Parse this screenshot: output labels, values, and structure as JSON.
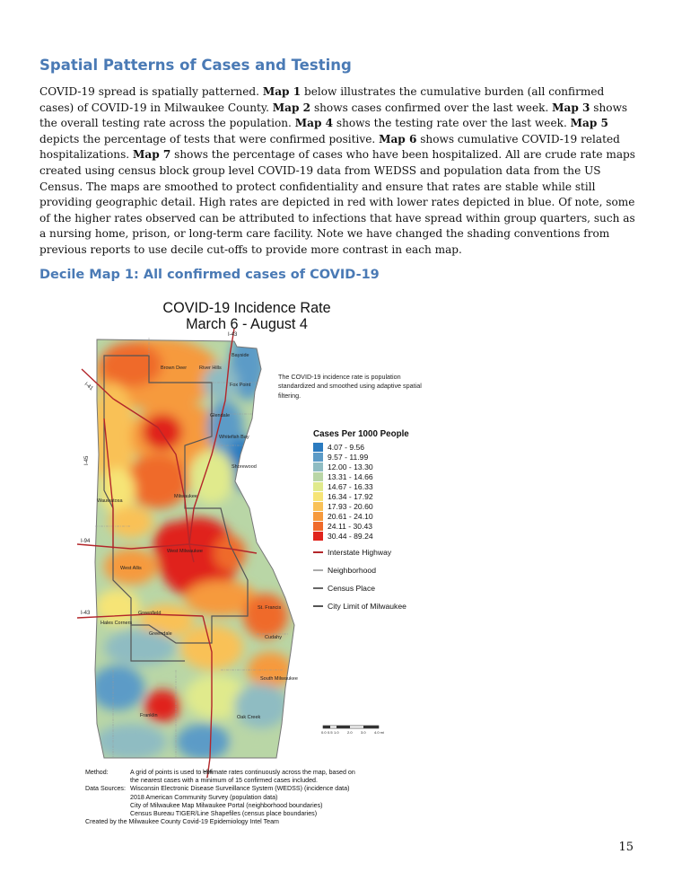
{
  "heading": "Spatial Patterns of Cases and Testing",
  "paragraph": [
    {
      "t": "COVID-19 spread is spatially patterned. "
    },
    {
      "t": "Map 1",
      "b": true
    },
    {
      "t": " below illustrates the cumulative burden (all confirmed cases) of COVID-19 in Milwaukee County. "
    },
    {
      "t": "Map 2",
      "b": true
    },
    {
      "t": " shows cases confirmed over the last week. "
    },
    {
      "t": "Map 3",
      "b": true
    },
    {
      "t": " shows the overall testing rate across the population. "
    },
    {
      "t": "Map 4",
      "b": true
    },
    {
      "t": " shows the testing rate over the last week. "
    },
    {
      "t": "Map 5",
      "b": true
    },
    {
      "t": " depicts the percentage of tests that were confirmed positive. "
    },
    {
      "t": "Map 6",
      "b": true
    },
    {
      "t": " shows cumulative COVID-19 related hospitalizations. "
    },
    {
      "t": "Map 7",
      "b": true
    },
    {
      "t": " shows the percentage of cases who have been hospitalized. All are crude rate maps created using census block group level COVID-19 data from WEDSS and population data from the US Census. The maps are smoothed to protect confidentiality and ensure that rates are stable while still providing geographic detail. High rates are depicted in red with lower rates depicted in blue. Of note, some of the higher rates observed can be attributed to infections that have spread within group quarters, such as a nursing home, prison, or long-term care facility. Note we have changed the shading conventions from previous reports to use decile cut-offs to provide more contrast in each map."
    }
  ],
  "subheading": "Decile Map 1: All confirmed cases of COVID-19",
  "map": {
    "title_line1": "COVID-19 Incidence Rate",
    "title_line2": "March 6 - August 4",
    "note": "The COVID-19 incidence rate is population standardized and smoothed using adaptive spatial filtering.",
    "places": [
      "Bayside",
      "Brown Deer",
      "River Hills",
      "Fox Point",
      "Glendale",
      "Whitefish Bay",
      "Shorewood",
      "Milwaukee",
      "Wauwatosa",
      "West Milwaukee",
      "West Allis",
      "St. Francis",
      "Cudahy",
      "Greenfield",
      "Hales Corners",
      "Greendale",
      "South Milwaukee",
      "Franklin",
      "Oak Creek"
    ],
    "highways": [
      "I-43",
      "I-41",
      "I-94",
      "I-43",
      "I-894",
      "I-94",
      "I-43"
    ],
    "scale_ticks": [
      "0.0",
      "0.5",
      "1.0",
      "2.0",
      "3.0",
      "4.0 mi"
    ]
  },
  "legend": {
    "title": "Cases Per 1000 People",
    "items": [
      {
        "label": "4.07 - 9.56",
        "color": "#2b7bc0"
      },
      {
        "label": "9.57 - 11.99",
        "color": "#5c9bc7"
      },
      {
        "label": "12.00 - 13.30",
        "color": "#8fbcc2"
      },
      {
        "label": "13.31 - 14.66",
        "color": "#b9d6a6"
      },
      {
        "label": "14.67 - 16.33",
        "color": "#e0ea8c"
      },
      {
        "label": "16.34 - 17.92",
        "color": "#f6e476"
      },
      {
        "label": "17.93 - 20.60",
        "color": "#f9c157"
      },
      {
        "label": "20.61 - 24.10",
        "color": "#f69a3d"
      },
      {
        "label": "24.11 - 30.43",
        "color": "#ef6a2a"
      },
      {
        "label": "30.44 - 89.24",
        "color": "#e0241c"
      }
    ],
    "lines": [
      {
        "label": "Interstate Highway",
        "color": "#b3262a",
        "style": "solid"
      },
      {
        "label": "Neighborhood",
        "color": "#aaaaaa",
        "style": "solid"
      },
      {
        "label": "Census Place",
        "color": "#666666",
        "style": "dashdot"
      },
      {
        "label": "City Limit of Milwaukee",
        "color": "#555555",
        "style": "solid"
      }
    ]
  },
  "footer": {
    "method_label": "Method:",
    "method_text_1": "A grid of points is used to estimate rates continuously across the map, based on",
    "method_text_2": "the nearest cases with a minimum of 15 confirmed cases included.",
    "sources_label": "Data Sources:",
    "sources": [
      "Wisconsin Electronic Disease Surveillance System (WEDSS) (incidence data)",
      "2018 American Community Survey (population data)",
      "City of Milwaukee Map Milwaukee Portal (neighborhood boundaries)",
      "Census Bureau TIGER/Line Shapefiles (census place boundaries)"
    ],
    "credit": "Created by the Milwaukee County Covid-19 Epidemiology Intel Team"
  },
  "page_number": "15"
}
